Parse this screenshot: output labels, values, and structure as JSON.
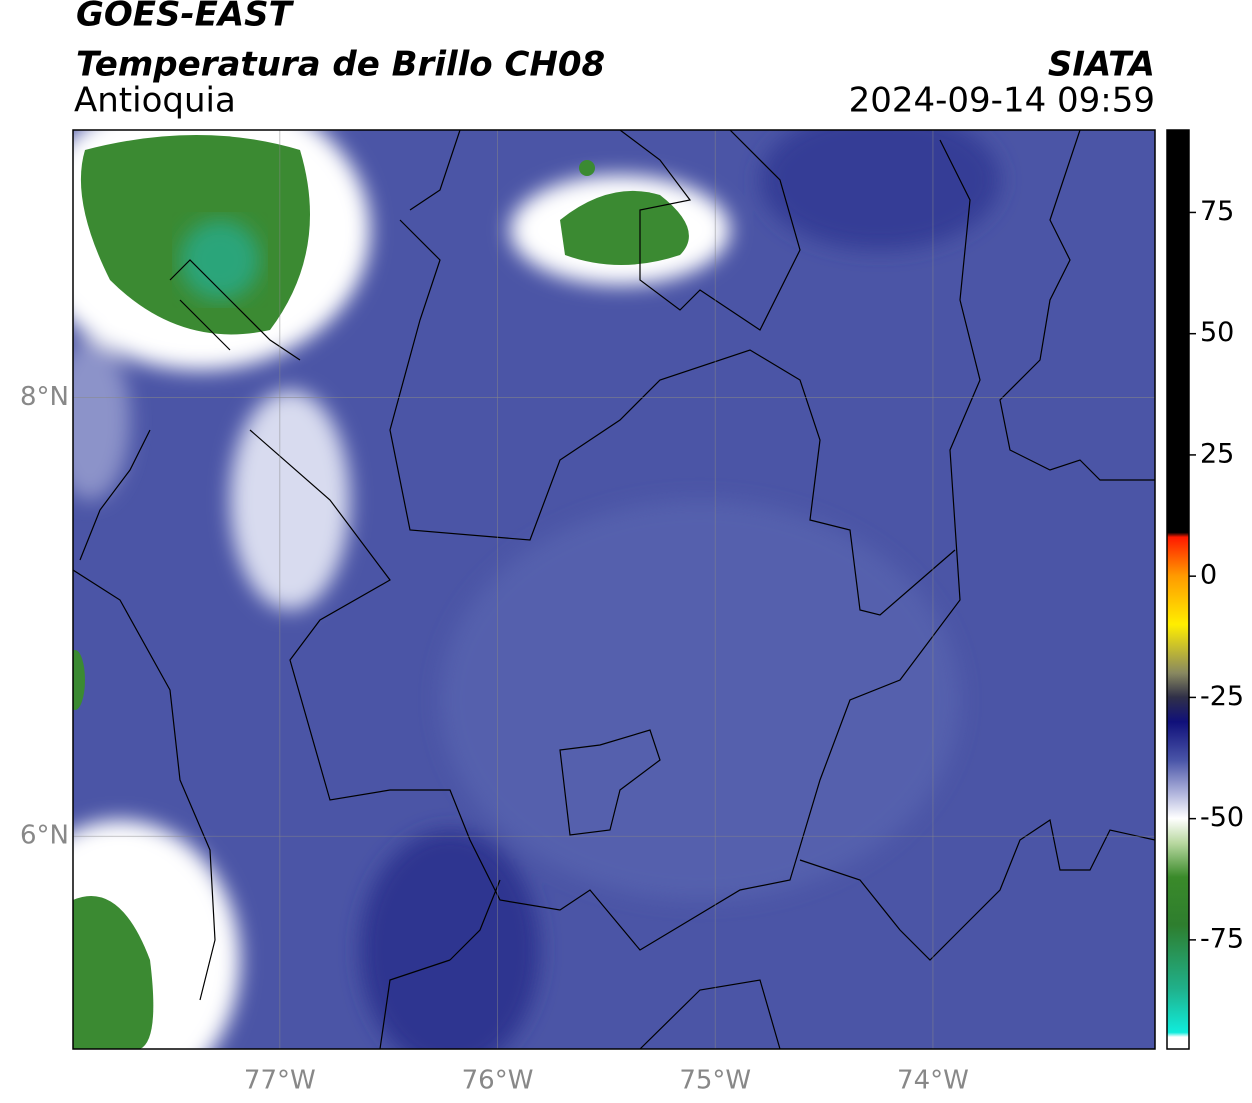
{
  "header": {
    "title": "GOES-EAST",
    "subtitle": "Temperatura de Brillo CH08",
    "region": "Antioquia",
    "source": "SIATA",
    "datetime": "2024-09-14 09:59"
  },
  "map": {
    "lonlim": [
      -77.95,
      -72.98
    ],
    "latlim": [
      5.03,
      9.22
    ],
    "xticks": [
      {
        "value": -77,
        "label": "77°W"
      },
      {
        "value": -76,
        "label": "76°W"
      },
      {
        "value": -75,
        "label": "75°W"
      },
      {
        "value": -74,
        "label": "74°W"
      }
    ],
    "yticks": [
      {
        "value": 6,
        "label": "6°N"
      },
      {
        "value": 8,
        "label": "8°N"
      }
    ],
    "grid": true
  },
  "colorbar": {
    "lim": [
      -97.5,
      92
    ],
    "ticks": [
      -75,
      -50,
      -25,
      0,
      25,
      50,
      75
    ]
  }
}
